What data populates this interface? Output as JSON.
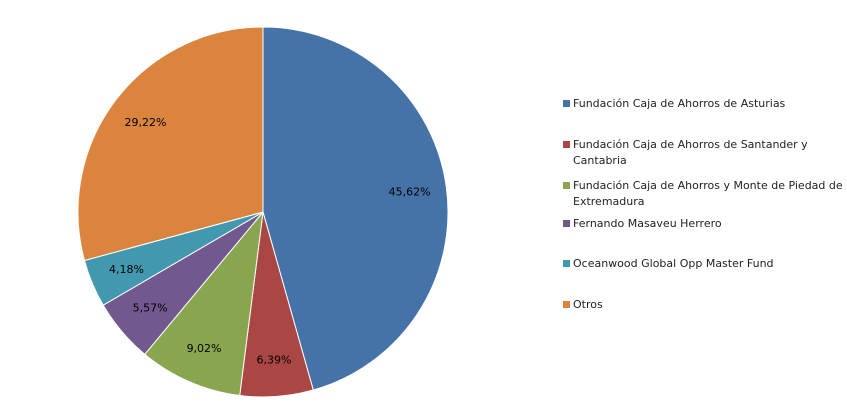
{
  "chart_data": {
    "type": "pie",
    "title": "",
    "series": [
      {
        "values": [
          45.62,
          6.39,
          9.02,
          5.57,
          4.18,
          29.22
        ]
      }
    ],
    "categories": [
      "Fundación Caja de Ahorros de Asturias",
      "Fundación Caja de Ahorros de Santander y Cantabria",
      "Fundación Caja de Ahorros y Monte de Piedad de Extremadura",
      "Fernando Masaveu Herrero",
      "Oceanwood Global Opp Master Fund",
      "Otros"
    ],
    "data_labels": [
      "45,62%",
      "6,39%",
      "9,02%",
      "5,57%",
      "4,18%",
      "29,22%"
    ],
    "colors": [
      "#4572A7",
      "#AA4643",
      "#89A54E",
      "#71588F",
      "#4198AF",
      "#DB843D"
    ],
    "legend_position": "right",
    "start": "12 o'clock, clockwise"
  }
}
